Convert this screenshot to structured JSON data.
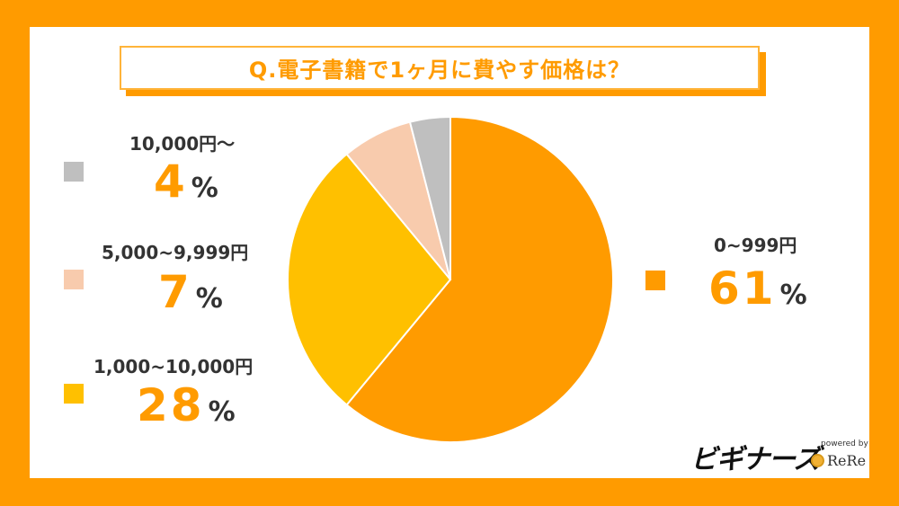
{
  "title": "Q.電子書籍で1ヶ月に費やす価格は？",
  "chart_data": {
    "type": "pie",
    "start": "top",
    "direction": "clockwise",
    "slices": [
      {
        "label": "0~999円",
        "value": 61,
        "color": "#ff9b00"
      },
      {
        "label": "1,000~10,000円",
        "value": 28,
        "color": "#ffc000"
      },
      {
        "label": "5,000~9,999円",
        "value": 7,
        "color": "#f8cbad"
      },
      {
        "label": "10,000円～",
        "value": 4,
        "color": "#bfbfbf"
      }
    ],
    "percent_suffix": "%"
  },
  "brand": {
    "name": "ビギナーズ",
    "powered_by": "powered by",
    "partner": "ReRe"
  }
}
